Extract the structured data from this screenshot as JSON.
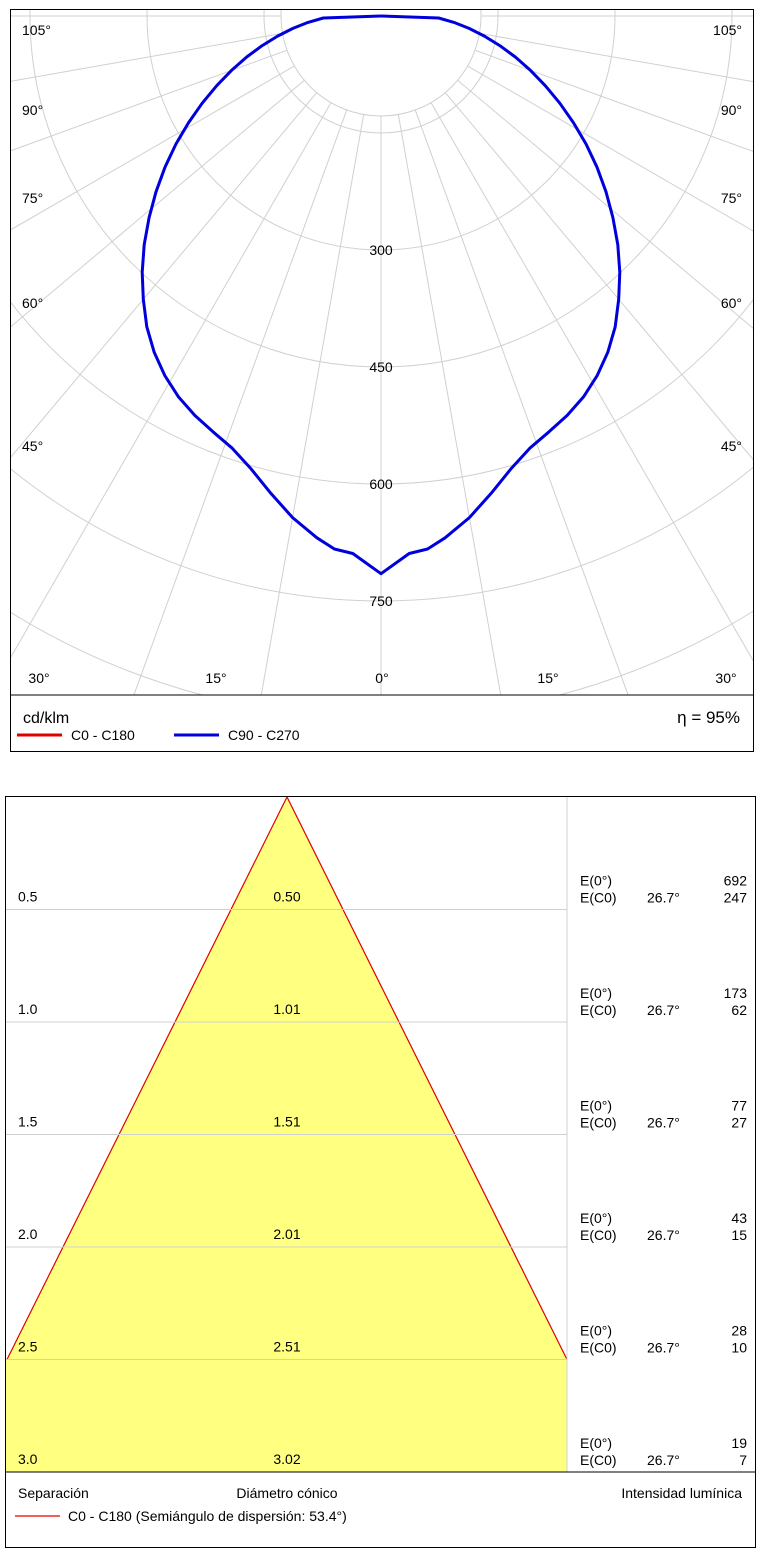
{
  "chart_data": [
    {
      "type": "polar",
      "unit_label": "cd/klm",
      "efficiency_label": "η = 95%",
      "radial_ticks": [
        300,
        450,
        600,
        750
      ],
      "angle_labels": {
        "left": [
          "105°",
          "90°",
          "75°",
          "60°",
          "45°",
          "30°"
        ],
        "right": [
          "105°",
          "90°",
          "75°",
          "60°",
          "45°",
          "30°"
        ],
        "bottom": [
          "30°",
          "15°",
          "0°",
          "15°",
          "30°"
        ]
      },
      "series": [
        {
          "name": "C0 - C180",
          "color": "#e00000",
          "angles": [],
          "values": []
        },
        {
          "name": "C90 - C270",
          "color": "#0000dd",
          "angles": [
            0,
            3,
            5,
            7,
            10,
            13,
            16,
            19,
            22,
            25,
            28,
            31,
            34,
            37,
            40,
            43,
            46,
            49,
            52,
            55,
            58,
            61,
            64,
            67,
            70,
            73,
            76,
            79,
            82,
            85,
            88,
            90
          ],
          "values": [
            715,
            690,
            686,
            674,
            653,
            628,
            604,
            586,
            575,
            565,
            553,
            538,
            520,
            499,
            474,
            449,
            422,
            394,
            366,
            338,
            310,
            282,
            255,
            229,
            204,
            180,
            157,
            135,
            114,
            94,
            74,
            0
          ]
        }
      ]
    },
    {
      "type": "cone",
      "series_name": "C0 - C180 (Semiángulo de dispersión: 53.4°)",
      "series_color": "#e00000",
      "fill_color": "#ffff80",
      "columns": {
        "separation": "Separación",
        "diameter": "Diámetro cónico",
        "intensity": "Intensidad lumínica"
      },
      "rows": [
        {
          "height": "0.5",
          "diameter": "0.50",
          "e0_label": "E(0°)",
          "ec0_label": "E(C0)",
          "angle": "26.7°",
          "e0": "692",
          "ec0": "247"
        },
        {
          "height": "1.0",
          "diameter": "1.01",
          "e0_label": "E(0°)",
          "ec0_label": "E(C0)",
          "angle": "26.7°",
          "e0": "173",
          "ec0": "62"
        },
        {
          "height": "1.5",
          "diameter": "1.51",
          "e0_label": "E(0°)",
          "ec0_label": "E(C0)",
          "angle": "26.7°",
          "e0": "77",
          "ec0": "27"
        },
        {
          "height": "2.0",
          "diameter": "2.01",
          "e0_label": "E(0°)",
          "ec0_label": "E(C0)",
          "angle": "26.7°",
          "e0": "43",
          "ec0": "15"
        },
        {
          "height": "2.5",
          "diameter": "2.51",
          "e0_label": "E(0°)",
          "ec0_label": "E(C0)",
          "angle": "26.7°",
          "e0": "28",
          "ec0": "10"
        },
        {
          "height": "3.0",
          "diameter": "3.02",
          "e0_label": "E(0°)",
          "ec0_label": "E(C0)",
          "angle": "26.7°",
          "e0": "19",
          "ec0": "7"
        }
      ]
    }
  ]
}
